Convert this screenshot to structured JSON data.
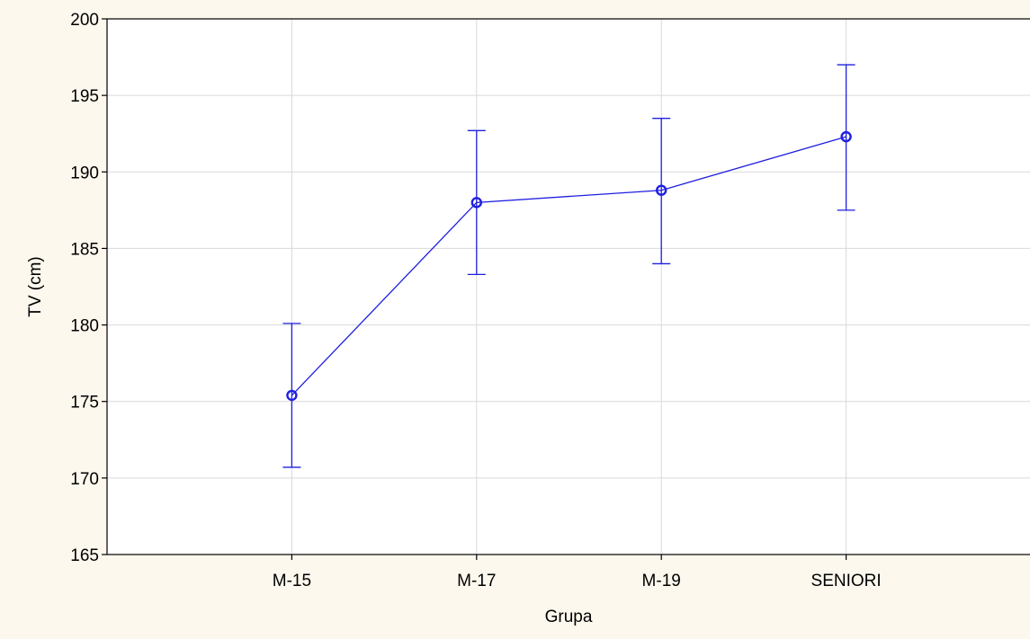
{
  "chart_data": {
    "type": "line",
    "title": "",
    "xlabel": "Grupa",
    "ylabel": "TV (cm)",
    "categories": [
      "M-15",
      "M-17",
      "M-19",
      "SENIORI"
    ],
    "series": [
      {
        "values": [
          175.4,
          188.0,
          188.8,
          192.3
        ],
        "lower": [
          170.7,
          183.3,
          184.0,
          187.5
        ],
        "upper": [
          180.1,
          192.7,
          193.5,
          197.0
        ]
      }
    ],
    "ylim": [
      165,
      200
    ],
    "yticks": [
      165,
      170,
      175,
      180,
      185,
      190,
      195,
      200
    ],
    "grid": true,
    "legend": "none",
    "colors": {
      "series": "#1f1fe0",
      "grid": "#d9d9d9",
      "axis": "#000000",
      "plot_background": "#ffffff",
      "page_background": "#fdf8ee"
    }
  }
}
